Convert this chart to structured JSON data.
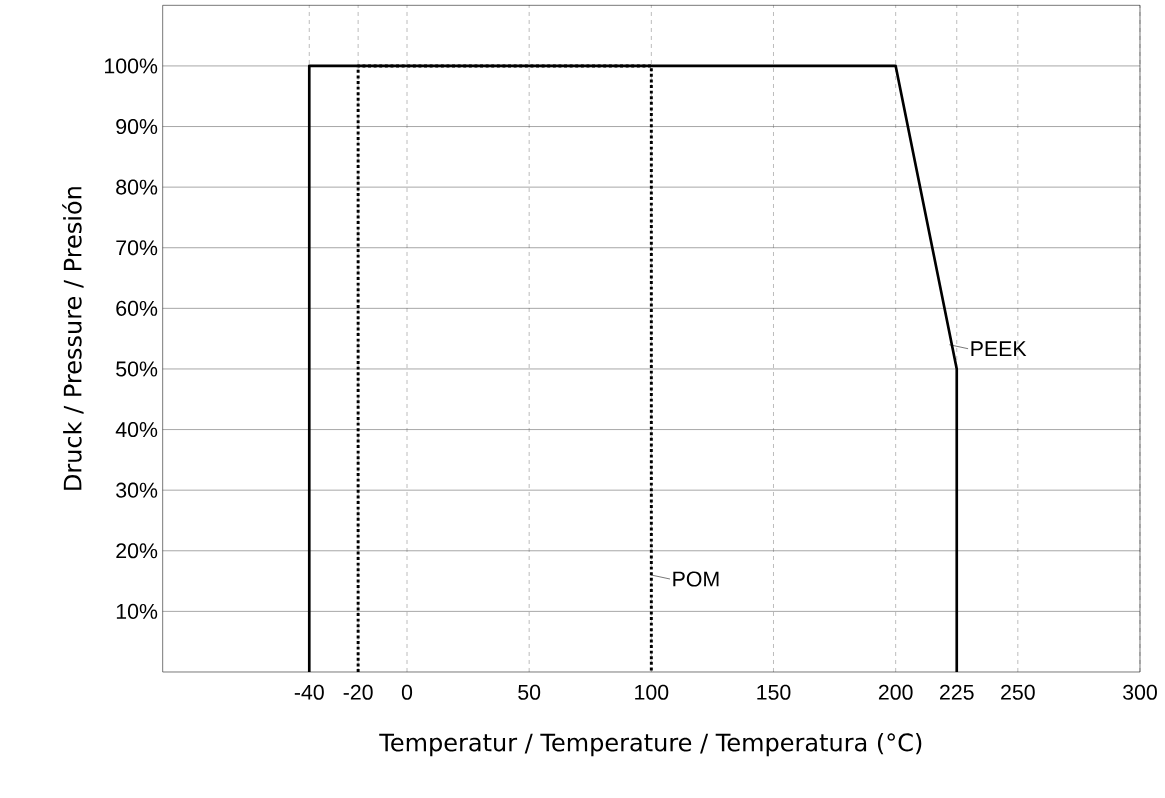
{
  "chart_data": {
    "type": "line",
    "xlabel": "Temperatur / Temperature / Temperatura (°C)",
    "ylabel": "Druck / Pressure / Presión",
    "xlim": [
      -100,
      300
    ],
    "ylim": [
      0,
      110
    ],
    "xticks": [
      -40,
      -20,
      0,
      50,
      100,
      150,
      200,
      225,
      250,
      300
    ],
    "yticks": [
      {
        "value": 10,
        "label": "10%"
      },
      {
        "value": 20,
        "label": "20%"
      },
      {
        "value": 30,
        "label": "30%"
      },
      {
        "value": 40,
        "label": "40%"
      },
      {
        "value": 50,
        "label": "50%"
      },
      {
        "value": 60,
        "label": "60%"
      },
      {
        "value": 70,
        "label": "70%"
      },
      {
        "value": 80,
        "label": "80%"
      },
      {
        "value": 90,
        "label": "90%"
      },
      {
        "value": 100,
        "label": "100%"
      }
    ],
    "grid": true,
    "marker": "none",
    "series": [
      {
        "color": "#000000",
        "line_style": "solid",
        "x": [
          -40,
          -40,
          200,
          225,
          225
        ],
        "values": [
          0,
          100,
          100,
          50,
          0
        ]
      },
      {
        "color": "#000000",
        "line_style": "dotted",
        "x": [
          -20,
          -20,
          100,
          100
        ],
        "values": [
          0,
          100,
          100,
          0
        ]
      }
    ],
    "annotations": [
      {
        "text": "PEEK",
        "x": 222,
        "y": 54
      },
      {
        "text": "POM",
        "x": 100,
        "y": 16
      }
    ]
  }
}
